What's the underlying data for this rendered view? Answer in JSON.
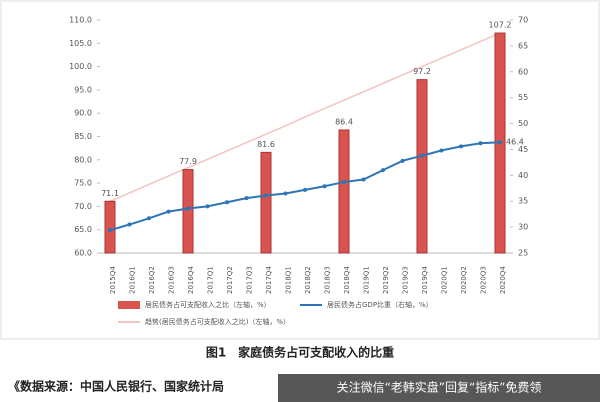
{
  "chart_data": {
    "type": "combo",
    "title": "图1　家庭债务占可支配收入的比重",
    "categories": [
      "2015Q4",
      "2016Q1",
      "2016Q2",
      "2016Q3",
      "2016Q4",
      "2017Q1",
      "2017Q2",
      "2017Q3",
      "2017Q4",
      "2018Q1",
      "2018Q2",
      "2018Q3",
      "2018Q4",
      "2019Q1",
      "2019Q2",
      "2019Q3",
      "2019Q4",
      "2020Q1",
      "2020Q2",
      "2020Q3",
      "2020Q4"
    ],
    "series": [
      {
        "name": "居民债务占可支配收入之比（左轴，%）",
        "type": "bar",
        "color": "#d9534f",
        "values": [
          71.1,
          null,
          null,
          null,
          77.9,
          null,
          null,
          null,
          81.6,
          null,
          null,
          null,
          86.4,
          null,
          null,
          null,
          97.2,
          null,
          null,
          null,
          107.2
        ]
      },
      {
        "name": "居民债务占GDP比重（右轴，%）",
        "type": "line",
        "axis": "y2",
        "color": "#2e75b6",
        "values": [
          29.4,
          30.5,
          31.7,
          33.0,
          33.6,
          34.0,
          34.8,
          35.6,
          36.1,
          36.5,
          37.2,
          37.9,
          38.7,
          39.2,
          41.0,
          42.8,
          43.8,
          44.8,
          45.6,
          46.2,
          46.4
        ]
      },
      {
        "name": "趋势(居民债务占可支配收入之比)（左轴，%）",
        "type": "line",
        "color": "#f2c4bf",
        "values": [
          71.1,
          72.9,
          74.7,
          76.5,
          78.3,
          80.1,
          81.9,
          83.7,
          85.5,
          87.3,
          89.2,
          91.0,
          92.8,
          94.6,
          96.4,
          98.2,
          100.0,
          101.8,
          103.6,
          105.4,
          107.2
        ]
      }
    ],
    "ylim": [
      60,
      110
    ],
    "yticks": [
      {
        "value": 60,
        "label": "60.0"
      },
      {
        "value": 65,
        "label": "65.0"
      },
      {
        "value": 70,
        "label": "70.0"
      },
      {
        "value": 75,
        "label": "75.0"
      },
      {
        "value": 80,
        "label": "80.0"
      },
      {
        "value": 85,
        "label": "85.0"
      },
      {
        "value": 90,
        "label": "90.0"
      },
      {
        "value": 95,
        "label": "95.0"
      },
      {
        "value": 100,
        "label": "100.0"
      },
      {
        "value": 105,
        "label": "105.0"
      },
      {
        "value": 110,
        "label": "110.0"
      }
    ],
    "y2lim": [
      25,
      70
    ],
    "y2ticks": [
      25,
      30,
      35,
      40,
      45,
      50,
      55,
      60,
      65,
      70
    ]
  },
  "source": "《数据来源：中国人民银行、国家统计局",
  "watermark": "关注微信“老韩实盘”回复“指标”免费领"
}
